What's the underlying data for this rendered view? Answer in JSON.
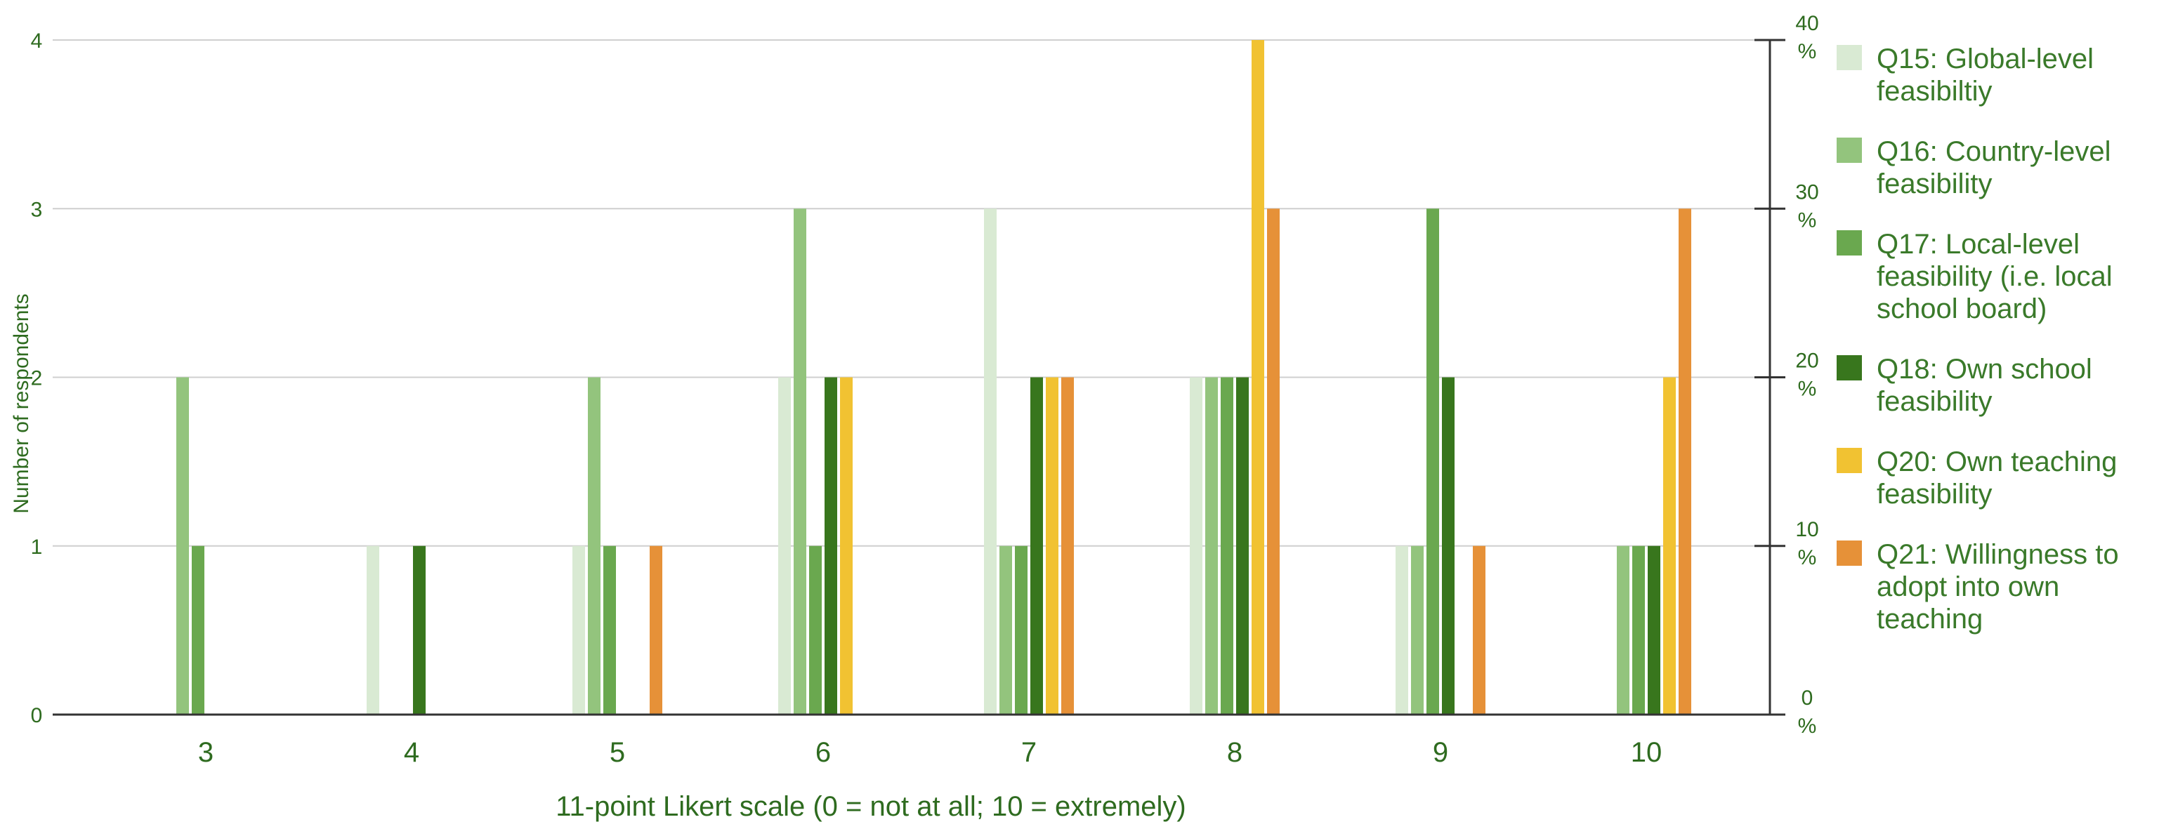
{
  "chart_data": {
    "type": "bar",
    "categories": [
      "3",
      "4",
      "5",
      "6",
      "7",
      "8",
      "9",
      "10"
    ],
    "series": [
      {
        "name": "Q15: Global-level feasibiltiy",
        "legend_lines": [
          "Q15: Global-level",
          "feasibiltiy"
        ],
        "color": "#d9ead3",
        "values": [
          0,
          1,
          1,
          2,
          3,
          2,
          1,
          0
        ]
      },
      {
        "name": "Q16: Country-level feasibility",
        "legend_lines": [
          "Q16: Country-level",
          "feasibility"
        ],
        "color": "#93c47d",
        "values": [
          2,
          0,
          2,
          3,
          1,
          2,
          1,
          1
        ]
      },
      {
        "name": "Q17: Local-level feasibility (i.e. local school board)",
        "legend_lines": [
          "Q17: Local-level",
          "feasibility (i.e. local",
          "school board)"
        ],
        "color": "#6aa84f",
        "values": [
          1,
          0,
          1,
          1,
          1,
          2,
          3,
          1
        ]
      },
      {
        "name": "Q18: Own school feasibility",
        "legend_lines": [
          "Q18: Own school",
          "feasibility"
        ],
        "color": "#38761d",
        "values": [
          0,
          1,
          0,
          2,
          2,
          2,
          2,
          1
        ]
      },
      {
        "name": "Q20: Own teaching feasibility",
        "legend_lines": [
          "Q20: Own teaching",
          "feasibility"
        ],
        "color": "#f1c232",
        "values": [
          0,
          0,
          0,
          2,
          2,
          4,
          0,
          2
        ]
      },
      {
        "name": "Q21: Willingness to adopt into own teaching",
        "legend_lines": [
          "Q21: Willingness to",
          "adopt into own",
          "teaching"
        ],
        "color": "#e69138",
        "values": [
          0,
          0,
          1,
          0,
          2,
          3,
          1,
          3
        ]
      }
    ],
    "xlabel": "11-point Likert scale (0 = not at all; 10 = extremely)",
    "ylabel": "Number of respondents",
    "ylim": [
      0,
      4
    ],
    "y_ticks": [
      "0",
      "1",
      "2",
      "3",
      "4"
    ],
    "y2_ticks": [
      {
        "value": "0",
        "unit": "%"
      },
      {
        "value": "10",
        "unit": "%"
      },
      {
        "value": "20",
        "unit": "%"
      },
      {
        "value": "30",
        "unit": "%"
      },
      {
        "value": "40",
        "unit": "%"
      }
    ],
    "y2lim": [
      0,
      40
    ],
    "grid": true,
    "legend_position": "right",
    "colors": {
      "axis": "#2e6b1f",
      "grid": "#cfcfcf",
      "axis_line": "#333333"
    }
  }
}
